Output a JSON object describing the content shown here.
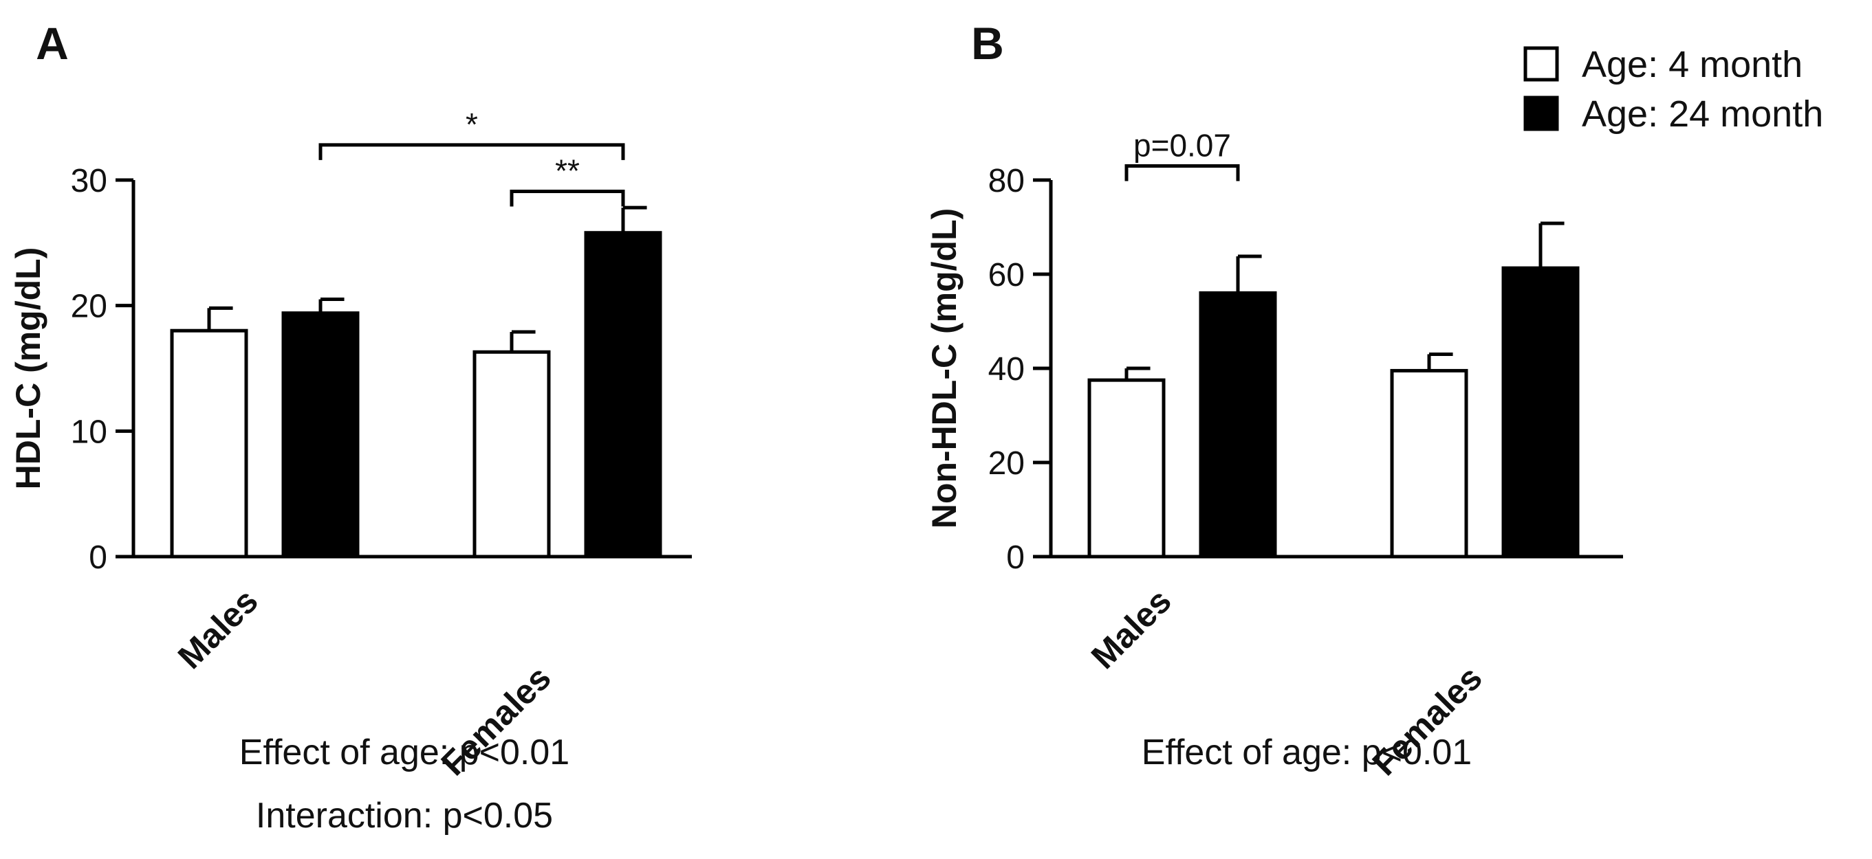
{
  "colors": {
    "series_open": "#ffffff",
    "series_filled": "#000000",
    "stroke": "#000000"
  },
  "legend": [
    {
      "label": "Age: 4 month",
      "style": "open"
    },
    {
      "label": "Age: 24 month",
      "style": "filled"
    }
  ],
  "chart_data": [
    {
      "type": "bar",
      "panel": "A",
      "ylabel": "HDL-C (mg/dL)",
      "ylim": [
        0,
        30
      ],
      "yticks": [
        0,
        10,
        20,
        30
      ],
      "categories": [
        "Males",
        "Females"
      ],
      "series": [
        {
          "name": "Age: 4 month",
          "style": "open",
          "values": [
            18.0,
            16.3
          ],
          "errors": [
            1.8,
            1.6
          ]
        },
        {
          "name": "Age: 24 month",
          "style": "filled",
          "values": [
            19.4,
            25.8
          ],
          "errors": [
            1.1,
            2.0
          ]
        }
      ],
      "significance": [
        {
          "label": "*",
          "from": [
            0,
            1
          ],
          "to": [
            1,
            1
          ],
          "y": 32.8
        },
        {
          "label": "**",
          "from": [
            1,
            0
          ],
          "to": [
            1,
            1
          ],
          "y": 29.1
        }
      ],
      "notes": [
        "Effect of age:  p<0.01",
        "Interaction:  p<0.05"
      ]
    },
    {
      "type": "bar",
      "panel": "B",
      "ylabel": "Non-HDL-C (mg/dL)",
      "ylim": [
        0,
        80
      ],
      "yticks": [
        0,
        20,
        40,
        60,
        80
      ],
      "categories": [
        "Males",
        "Females"
      ],
      "series": [
        {
          "name": "Age: 4 month",
          "style": "open",
          "values": [
            37.5,
            39.5
          ],
          "errors": [
            2.5,
            3.5
          ]
        },
        {
          "name": "Age: 24 month",
          "style": "filled",
          "values": [
            56.0,
            61.3
          ],
          "errors": [
            7.8,
            9.5
          ]
        }
      ],
      "significance": [
        {
          "label": "p=0.07",
          "from": [
            0,
            0
          ],
          "to": [
            0,
            1
          ],
          "y": 83.0
        }
      ],
      "notes": [
        "Effect of age:  p<0.01"
      ]
    }
  ]
}
